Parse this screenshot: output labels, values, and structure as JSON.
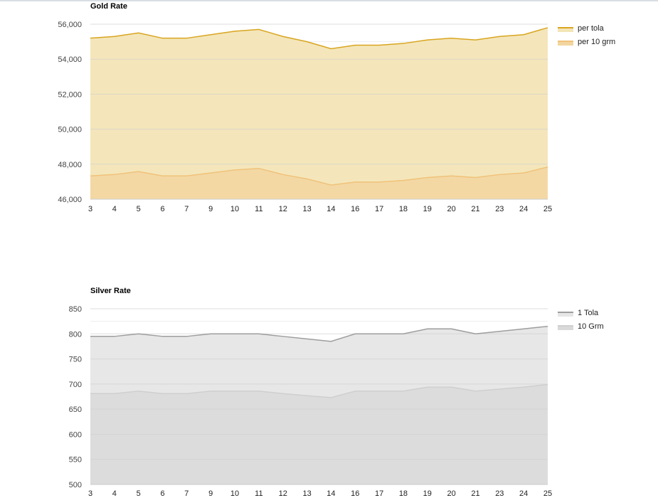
{
  "chart_data": [
    {
      "id": "gold",
      "type": "area",
      "title": "Gold Rate",
      "xlabel": "",
      "ylabel": "",
      "categories": [
        "3",
        "4",
        "5",
        "6",
        "7",
        "9",
        "10",
        "11",
        "12",
        "13",
        "14",
        "16",
        "17",
        "18",
        "19",
        "20",
        "21",
        "23",
        "24",
        "25"
      ],
      "series": [
        {
          "name": "per tola",
          "values": [
            55200,
            55300,
            55500,
            55200,
            55200,
            55400,
            55600,
            55700,
            55300,
            55000,
            54600,
            54800,
            54800,
            54900,
            55100,
            55200,
            55100,
            55300,
            55400,
            55800
          ],
          "line_color": "#d9a520",
          "fill_color": "#f3e5b6"
        },
        {
          "name": "per 10 grm",
          "values": [
            47330,
            47410,
            47580,
            47330,
            47330,
            47500,
            47670,
            47760,
            47410,
            47160,
            46810,
            46980,
            46980,
            47070,
            47240,
            47330,
            47240,
            47410,
            47500,
            47840
          ],
          "line_color": "#f0c27a",
          "fill_color": "#f2d5a0"
        }
      ],
      "ylim": [
        46000,
        56000
      ],
      "yticks": [
        46000,
        48000,
        50000,
        52000,
        54000,
        56000
      ],
      "ytick_labels": [
        "46,000",
        "48,000",
        "50,000",
        "52,000",
        "54,000",
        "56,000"
      ],
      "grid": true,
      "legend_position": "right"
    },
    {
      "id": "silver",
      "type": "area",
      "title": "Silver Rate",
      "xlabel": "",
      "ylabel": "",
      "categories": [
        "3",
        "4",
        "5",
        "6",
        "7",
        "9",
        "10",
        "11",
        "12",
        "13",
        "14",
        "16",
        "17",
        "18",
        "19",
        "20",
        "21",
        "23",
        "24",
        "25"
      ],
      "series": [
        {
          "name": "1 Tola",
          "values": [
            795,
            795,
            800,
            795,
            795,
            800,
            800,
            800,
            795,
            790,
            785,
            800,
            800,
            800,
            810,
            810,
            800,
            805,
            810,
            815
          ],
          "line_color": "#9e9e9e",
          "fill_color": "#e6e6e6"
        },
        {
          "name": "10 Grm",
          "values": [
            681,
            681,
            686,
            681,
            681,
            686,
            686,
            686,
            681,
            677,
            673,
            686,
            686,
            686,
            694,
            694,
            686,
            690,
            694,
            699
          ],
          "line_color": "#cfcfcf",
          "fill_color": "#d9d9d9"
        }
      ],
      "ylim": [
        500,
        850
      ],
      "yticks": [
        500,
        550,
        600,
        650,
        700,
        750,
        800,
        850
      ],
      "ytick_labels": [
        "500",
        "550",
        "600",
        "650",
        "700",
        "750",
        "800",
        "850"
      ],
      "grid": true,
      "legend_position": "right"
    }
  ]
}
